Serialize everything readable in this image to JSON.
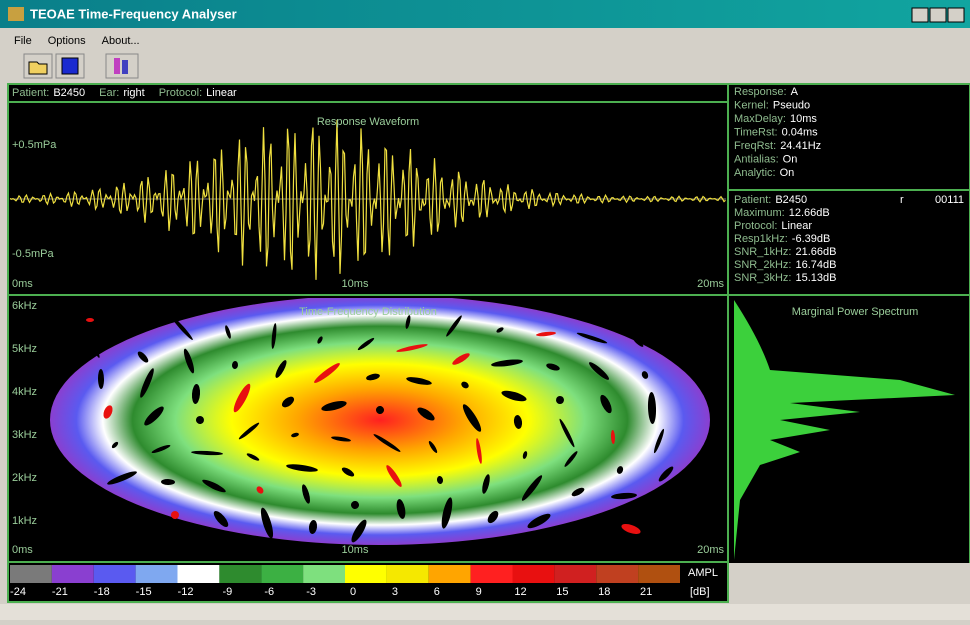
{
  "window": {
    "title": "TEOAE Time-Frequency Analyser"
  },
  "menu": [
    "File",
    "Options",
    "About..."
  ],
  "info_bar": [
    {
      "label": "Patient:",
      "value": "B2450"
    },
    {
      "label": "Ear:",
      "value": "right"
    },
    {
      "label": "Protocol:",
      "value": "Linear"
    }
  ],
  "waveform": {
    "title": "Response Waveform",
    "y_labels": [
      "+0.5mPa",
      "-0.5mPa"
    ],
    "x_labels": [
      "0ms",
      "10ms",
      "20ms"
    ]
  },
  "spectrogram": {
    "title": "Time-Frequency Distribution",
    "y_labels": [
      "6kHz",
      "5kHz",
      "4kHz",
      "3kHz",
      "2kHz",
      "1kHz"
    ],
    "x_labels": [
      "0ms",
      "10ms",
      "20ms"
    ]
  },
  "colorbar": {
    "title": "AMPL",
    "unit": "[dB]",
    "labels": [
      -24,
      -21,
      -18,
      -15,
      -12,
      -9,
      -6,
      -3,
      0,
      3,
      6,
      9,
      12,
      15,
      18,
      21
    ],
    "colors": [
      "#7a7a7a",
      "#8a3fd0",
      "#5a5af0",
      "#7fa8f0",
      "#ffffff",
      "#2e8b2e",
      "#3cb043",
      "#7ee07e",
      "#ffff00",
      "#f5e800",
      "#ffa500",
      "#ff2020",
      "#e81010",
      "#d02020",
      "#c04020",
      "#b05010"
    ]
  },
  "settings": [
    {
      "label": "Response:",
      "value": "A"
    },
    {
      "label": "Kernel:",
      "value": "Pseudo"
    },
    {
      "label": "MaxDelay:",
      "value": "10ms"
    },
    {
      "label": "TimeRst:",
      "value": "0.04ms"
    },
    {
      "label": "FreqRst:",
      "value": "24.41Hz"
    },
    {
      "label": "Antialias:",
      "value": "On"
    },
    {
      "label": "Analytic:",
      "value": "On"
    }
  ],
  "results": {
    "record": "00111",
    "marker": "r",
    "rows": [
      {
        "label": "Patient:",
        "value": "B2450"
      },
      {
        "label": "Maximum:",
        "value": "12.66dB"
      },
      {
        "label": "Protocol:",
        "value": "Linear"
      },
      {
        "label": "Resp1kHz:",
        "value": "-6.39dB"
      },
      {
        "label": "SNR_1kHz:",
        "value": "21.66dB"
      },
      {
        "label": "SNR_2kHz:",
        "value": "16.74dB"
      },
      {
        "label": "SNR_3kHz:",
        "value": "15.13dB"
      }
    ]
  },
  "spectrum": {
    "title": "Marginal Power Spectrum"
  }
}
